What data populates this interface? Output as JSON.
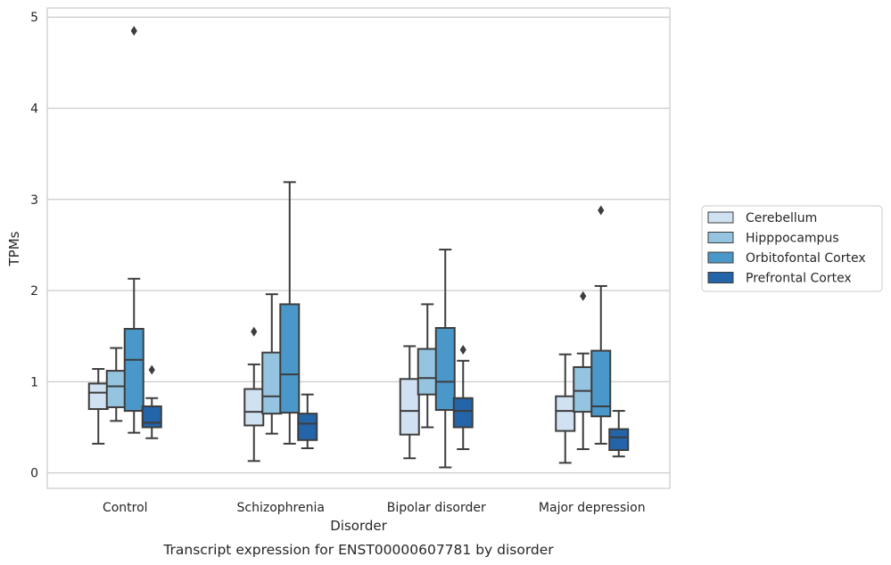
{
  "caption": "Transcript expression for ENST00000607781 by disorder",
  "chart_data": {
    "type": "box",
    "title": "",
    "xlabel": "Disorder",
    "ylabel": "TPMs",
    "ylim": [
      -0.17,
      5.1
    ],
    "yticks": [
      0,
      1,
      2,
      3,
      4,
      5
    ],
    "grid": "horizontal",
    "legend_position": "right",
    "categories": [
      "Control",
      "Schizophrenia",
      "Bipolar disorder",
      "Major depression"
    ],
    "series": [
      {
        "name": "Cerebellum",
        "color": "#d0e1f2",
        "boxes": [
          {
            "whisker_low": 0.32,
            "q1": 0.7,
            "median": 0.88,
            "q3": 0.98,
            "whisker_high": 1.14,
            "outliers": []
          },
          {
            "whisker_low": 0.13,
            "q1": 0.52,
            "median": 0.67,
            "q3": 0.92,
            "whisker_high": 1.19,
            "outliers": [
              1.55
            ]
          },
          {
            "whisker_low": 0.16,
            "q1": 0.42,
            "median": 0.68,
            "q3": 1.03,
            "whisker_high": 1.39,
            "outliers": []
          },
          {
            "whisker_low": 0.11,
            "q1": 0.46,
            "median": 0.68,
            "q3": 0.84,
            "whisker_high": 1.3,
            "outliers": []
          }
        ]
      },
      {
        "name": "Hipppocampus",
        "color": "#94c4df",
        "boxes": [
          {
            "whisker_low": 0.57,
            "q1": 0.72,
            "median": 0.95,
            "q3": 1.12,
            "whisker_high": 1.37,
            "outliers": []
          },
          {
            "whisker_low": 0.43,
            "q1": 0.65,
            "median": 0.84,
            "q3": 1.32,
            "whisker_high": 1.96,
            "outliers": []
          },
          {
            "whisker_low": 0.5,
            "q1": 0.86,
            "median": 1.04,
            "q3": 1.36,
            "whisker_high": 1.85,
            "outliers": []
          },
          {
            "whisker_low": 0.26,
            "q1": 0.67,
            "median": 0.9,
            "q3": 1.16,
            "whisker_high": 1.31,
            "outliers": [
              1.94
            ]
          }
        ]
      },
      {
        "name": "Orbitofontal Cortex",
        "color": "#4a98c9",
        "boxes": [
          {
            "whisker_low": 0.44,
            "q1": 0.68,
            "median": 1.24,
            "q3": 1.58,
            "whisker_high": 2.13,
            "outliers": [
              4.85
            ]
          },
          {
            "whisker_low": 0.32,
            "q1": 0.66,
            "median": 1.08,
            "q3": 1.85,
            "whisker_high": 3.19,
            "outliers": []
          },
          {
            "whisker_low": 0.06,
            "q1": 0.69,
            "median": 1.0,
            "q3": 1.59,
            "whisker_high": 2.45,
            "outliers": []
          },
          {
            "whisker_low": 0.32,
            "q1": 0.62,
            "median": 0.73,
            "q3": 1.34,
            "whisker_high": 2.05,
            "outliers": [
              2.88
            ]
          }
        ]
      },
      {
        "name": "Prefrontal Cortex",
        "color": "#2464a8",
        "boxes": [
          {
            "whisker_low": 0.38,
            "q1": 0.5,
            "median": 0.55,
            "q3": 0.73,
            "whisker_high": 0.82,
            "outliers": [
              1.13
            ]
          },
          {
            "whisker_low": 0.27,
            "q1": 0.36,
            "median": 0.54,
            "q3": 0.65,
            "whisker_high": 0.86,
            "outliers": []
          },
          {
            "whisker_low": 0.26,
            "q1": 0.5,
            "median": 0.68,
            "q3": 0.82,
            "whisker_high": 1.23,
            "outliers": [
              1.35
            ]
          },
          {
            "whisker_low": 0.18,
            "q1": 0.25,
            "median": 0.39,
            "q3": 0.48,
            "whisker_high": 0.68,
            "outliers": []
          }
        ]
      }
    ]
  }
}
